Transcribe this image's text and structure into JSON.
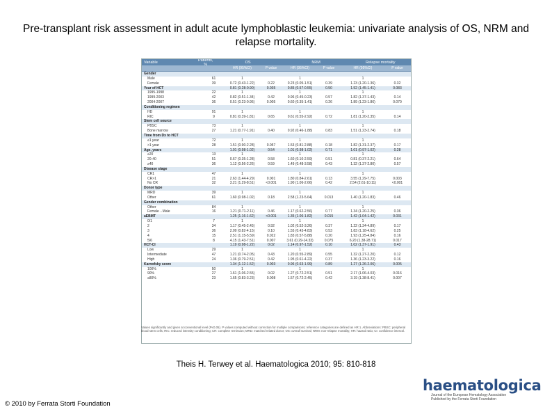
{
  "title": "Pre-transplant risk assessment in adult acute lymphoblastic leukemia: univariate analysis of OS, NRM and relapse mortality.",
  "citation": "Theis H. Terwey et al. Haematologica 2010; 95: 810-818",
  "copyright": "© 2010 by Ferrata Storti Foundation",
  "logo": {
    "name": "haematologica",
    "line1": "Journal of the European Hematology Association",
    "line2": "Published by the Ferrata Storti Foundation"
  },
  "table": {
    "groups": [
      "OS",
      "NRM",
      "Relapse mortality"
    ],
    "headers": [
      "Variable",
      "Patients, %",
      "HR (95%CI)",
      "P value",
      "HR (95%CI)",
      "P value",
      "HR (95%CI)",
      "P value"
    ],
    "rows": [
      {
        "type": "section",
        "cells": [
          "Gender",
          "",
          "",
          "",
          "",
          "",
          "",
          ""
        ]
      },
      {
        "type": "sub",
        "cells": [
          "Male",
          "61",
          "1",
          "",
          "1",
          "",
          "1",
          ""
        ]
      },
      {
        "type": "sub",
        "cells": [
          "Female",
          "39",
          "0.72 (0.43-1.22)",
          "0.22",
          "0.23 (0.05-1.51)",
          "0.39",
          "1.23 (1.20-1.36)",
          "0.32"
        ]
      },
      {
        "type": "section",
        "cells": [
          "Year of HCT",
          "",
          "0.81 (0.28-0.90)",
          "0.035",
          "0.85 (0.57-0.55)",
          "0.50",
          "1.52 (1.45-1.41)",
          "0.083"
        ]
      },
      {
        "type": "sub",
        "cells": [
          "1995-1998",
          "22",
          "1",
          "",
          "1",
          "",
          "1",
          ""
        ]
      },
      {
        "type": "sub",
        "cells": [
          "1999-2003",
          "42",
          "0.82 (0.51-1.34)",
          "0.42",
          "0.96 (0.45-0.23)",
          "0.57",
          "1.82 (1.37-1.43)",
          "0.14"
        ]
      },
      {
        "type": "sub",
        "cells": [
          "2004-2007",
          "36",
          "0.51 (0.23-0.95)",
          "0.005",
          "0.60 (0.35-1.41)",
          "0.26",
          "1.89 (1.23-1.86)",
          "0.070"
        ]
      },
      {
        "type": "section",
        "cells": [
          "Conditioning regimen",
          "",
          "",
          "",
          "",
          "",
          "",
          ""
        ]
      },
      {
        "type": "sub",
        "cells": [
          "HD",
          "91",
          "1",
          "",
          "1",
          "",
          "1",
          ""
        ]
      },
      {
        "type": "sub",
        "cells": [
          "RIC",
          "9",
          "0.81 (0.39-1.81)",
          "0.65",
          "0.61 (0.55-2.92)",
          "0.72",
          "1.81 (1.20-2.35)",
          "0.14"
        ]
      },
      {
        "type": "section",
        "cells": [
          "Stem cell source",
          "",
          "",
          "",
          "",
          "",
          "",
          ""
        ]
      },
      {
        "type": "sub",
        "cells": [
          "PBSC",
          "73",
          "1",
          "",
          "1",
          "",
          "1",
          ""
        ]
      },
      {
        "type": "sub",
        "cells": [
          "Bone marrow",
          "27",
          "1.21 (0.77-1.91)",
          "0.40",
          "0.92 (0.46-1.88)",
          "0.83",
          "1.51 (1.23-2.74)",
          "0.18"
        ]
      },
      {
        "type": "section",
        "cells": [
          "Time from Dx to HCT",
          "",
          "",
          "",
          "",
          "",
          "",
          ""
        ]
      },
      {
        "type": "sub",
        "cells": [
          "≤1 year",
          "72",
          "1",
          "",
          "1",
          "",
          "1",
          ""
        ]
      },
      {
        "type": "sub",
        "cells": [
          ">1 year",
          "28",
          "1.51 (0.90-2.28)",
          "0.057",
          "1.53 (0.81-2.88)",
          "0.18",
          "1.82 (1.31-2.37)",
          "0.17"
        ]
      },
      {
        "type": "section",
        "cells": [
          "Age, years",
          "",
          "1.01 (0.98-1.02)",
          "0.54",
          "1.01 (0.98-1.02)",
          "0.71",
          "1.01 (0.97-1.02)",
          "0.28"
        ]
      },
      {
        "type": "sub",
        "cells": [
          "≤20",
          "13",
          "1",
          "",
          "1",
          "",
          "1",
          ""
        ]
      },
      {
        "type": "sub",
        "cells": [
          "20-40",
          "51",
          "0.67 (0.35-1.28)",
          "0.58",
          "1.60 (0.10-2.59)",
          "0.51",
          "0.81 (0.37-2.21)",
          "0.64"
        ]
      },
      {
        "type": "sub",
        "cells": [
          "≥40",
          "36",
          "1.12 (0.56-2.26)",
          "0.59",
          "1.49 (0.48-3.58)",
          "0.43",
          "1.32 (1.37-2.80)",
          "0.57"
        ]
      },
      {
        "type": "section",
        "cells": [
          "Disease stage",
          "",
          "",
          "",
          "",
          "",
          "",
          ""
        ]
      },
      {
        "type": "sub",
        "cells": [
          "CR1",
          "47",
          "1",
          "",
          "1",
          "",
          "1",
          ""
        ]
      },
      {
        "type": "sub",
        "cells": [
          "CR>1",
          "21",
          "2.63 (1.44-4.29)",
          "0.001",
          "1.80 (0.84-2.61)",
          "0.13",
          "3.55 (1.29-7.75)",
          "0.003"
        ]
      },
      {
        "type": "sub",
        "cells": [
          "No CR",
          "32",
          "3.21 (1.29-8.51)",
          "<0.001",
          "1.90 (1.06-2.66)",
          "0.42",
          "2.54 (2.61-10.11)",
          "<0.001"
        ]
      },
      {
        "type": "section",
        "cells": [
          "Donor type",
          "",
          "",
          "",
          "",
          "",
          "",
          ""
        ]
      },
      {
        "type": "sub",
        "cells": [
          "MRD",
          "39",
          "1",
          "",
          "1",
          "",
          "1",
          ""
        ]
      },
      {
        "type": "sub",
        "cells": [
          "Other",
          "61",
          "1.60 (0.98-1.02)",
          "0.18",
          "2.58 (1.23-5.64)",
          "0.013",
          "1.40 (1.20-1.83)",
          "0.46"
        ]
      },
      {
        "type": "section",
        "cells": [
          "Gender combination",
          "",
          "",
          "",
          "",
          "",
          "",
          ""
        ]
      },
      {
        "type": "sub",
        "cells": [
          "Other",
          "84",
          "1",
          "",
          "1",
          "",
          "1",
          ""
        ]
      },
      {
        "type": "sub",
        "cells": [
          "Female→Male",
          "16",
          "1.21 (0.71-2.11)",
          "0.46",
          "1.17 (0.62-2.56)",
          "0.77",
          "1.34 (1.20-2.25)",
          "0.36"
        ]
      },
      {
        "type": "section",
        "cells": [
          "aEBMT",
          "",
          "1.25 (1.16-1.62)",
          "<0.001",
          "1.35 (1.06-1.82)",
          "0.015",
          "1.42 (1.04-1.42)",
          "0.031"
        ]
      },
      {
        "type": "sub",
        "cells": [
          "0/1",
          "7",
          "1",
          "",
          "1",
          "",
          "1",
          ""
        ]
      },
      {
        "type": "sub",
        "cells": [
          "2",
          "34",
          "1.17 (0.45-2.45)",
          "0.92",
          "1.02 (0.52-3.26)",
          "0.37",
          "1.22 (1.34-4.89)",
          "0.17"
        ]
      },
      {
        "type": "sub",
        "cells": [
          "3",
          "36",
          "2.09 (0.82-4.15)",
          "0.10",
          "1.55 (0.43-4.83)",
          "0.53",
          "1.83 (1.18-4.62)",
          "0.25"
        ]
      },
      {
        "type": "sub",
        "cells": [
          "4",
          "15",
          "2.51 (1.15-5.59)",
          "0.022",
          "1.83 (0.57-5.88)",
          "0.20",
          "1.93 (1.25-4.84)",
          "0.16"
        ]
      },
      {
        "type": "sub",
        "cells": [
          "5/6",
          "8",
          "4.15 (1.43-7.51)",
          "0.007",
          "3.61 (0.29-14.33)",
          "0.075",
          "6.20 (1.38-28.71)",
          "0.017"
        ]
      },
      {
        "type": "section",
        "cells": [
          "HCT-CI",
          "",
          "1.19 (0.98-1.22)",
          "0.02",
          "1.14 (0.97-1.52)",
          "0.10",
          "1.02 (1.37-1.91)",
          "0.43"
        ]
      },
      {
        "type": "sub",
        "cells": [
          "Low",
          "29",
          "1",
          "",
          "1",
          "",
          "1",
          ""
        ]
      },
      {
        "type": "sub",
        "cells": [
          "Intermediate",
          "47",
          "1.21 (0.74-2.05)",
          "0.43",
          "1.20 (0.55-2.89)",
          "0.55",
          "1.32 (1.27-2.20)",
          "0.12"
        ]
      },
      {
        "type": "sub",
        "cells": [
          "High",
          "24",
          "1.36 (0.79-2.51)",
          "0.42",
          "1.95 (0.61-4.22)",
          "0.37",
          "1.36 (1.23-3.22)",
          "0.16"
        ]
      },
      {
        "type": "section",
        "cells": [
          "Karnofsky score",
          "",
          "1.34 (1.12-1.52)",
          "0.003",
          "0.96 (0.63-1.99)",
          "0.89",
          "1.27 (1.26-2.06)",
          "0.005"
        ]
      },
      {
        "type": "sub",
        "cells": [
          "100%",
          "50",
          "1",
          "",
          "1",
          "",
          "1",
          ""
        ]
      },
      {
        "type": "sub",
        "cells": [
          "90%",
          "27",
          "1.61 (1.06-2.55)",
          "0.02",
          "1.27 (0.72-2.51)",
          "0.51",
          "2.17 (1.06-4.03)",
          "0.016"
        ]
      },
      {
        "type": "sub",
        "cells": [
          "≤80%",
          "23",
          "1.65 (0.83-3.23)",
          "0.008",
          "1.57 (0.72-2.45)",
          "0.42",
          "3.19 (1.38-8.41)",
          "0.007"
        ]
      }
    ],
    "footnote": "Values significantly and given at conventional level (P≤0.05). P values computed without correction for multiple comparisons; reference categories are defined as HR 1. Abbreviations: PBSC: peripheral blood stem cells; RIC: reduced intensity conditioning; CR: complete remission; MRD: matched related donor; OS: overall survival; NRM: non-relapse mortality; HR: hazard ratio; CI: confidence interval."
  }
}
